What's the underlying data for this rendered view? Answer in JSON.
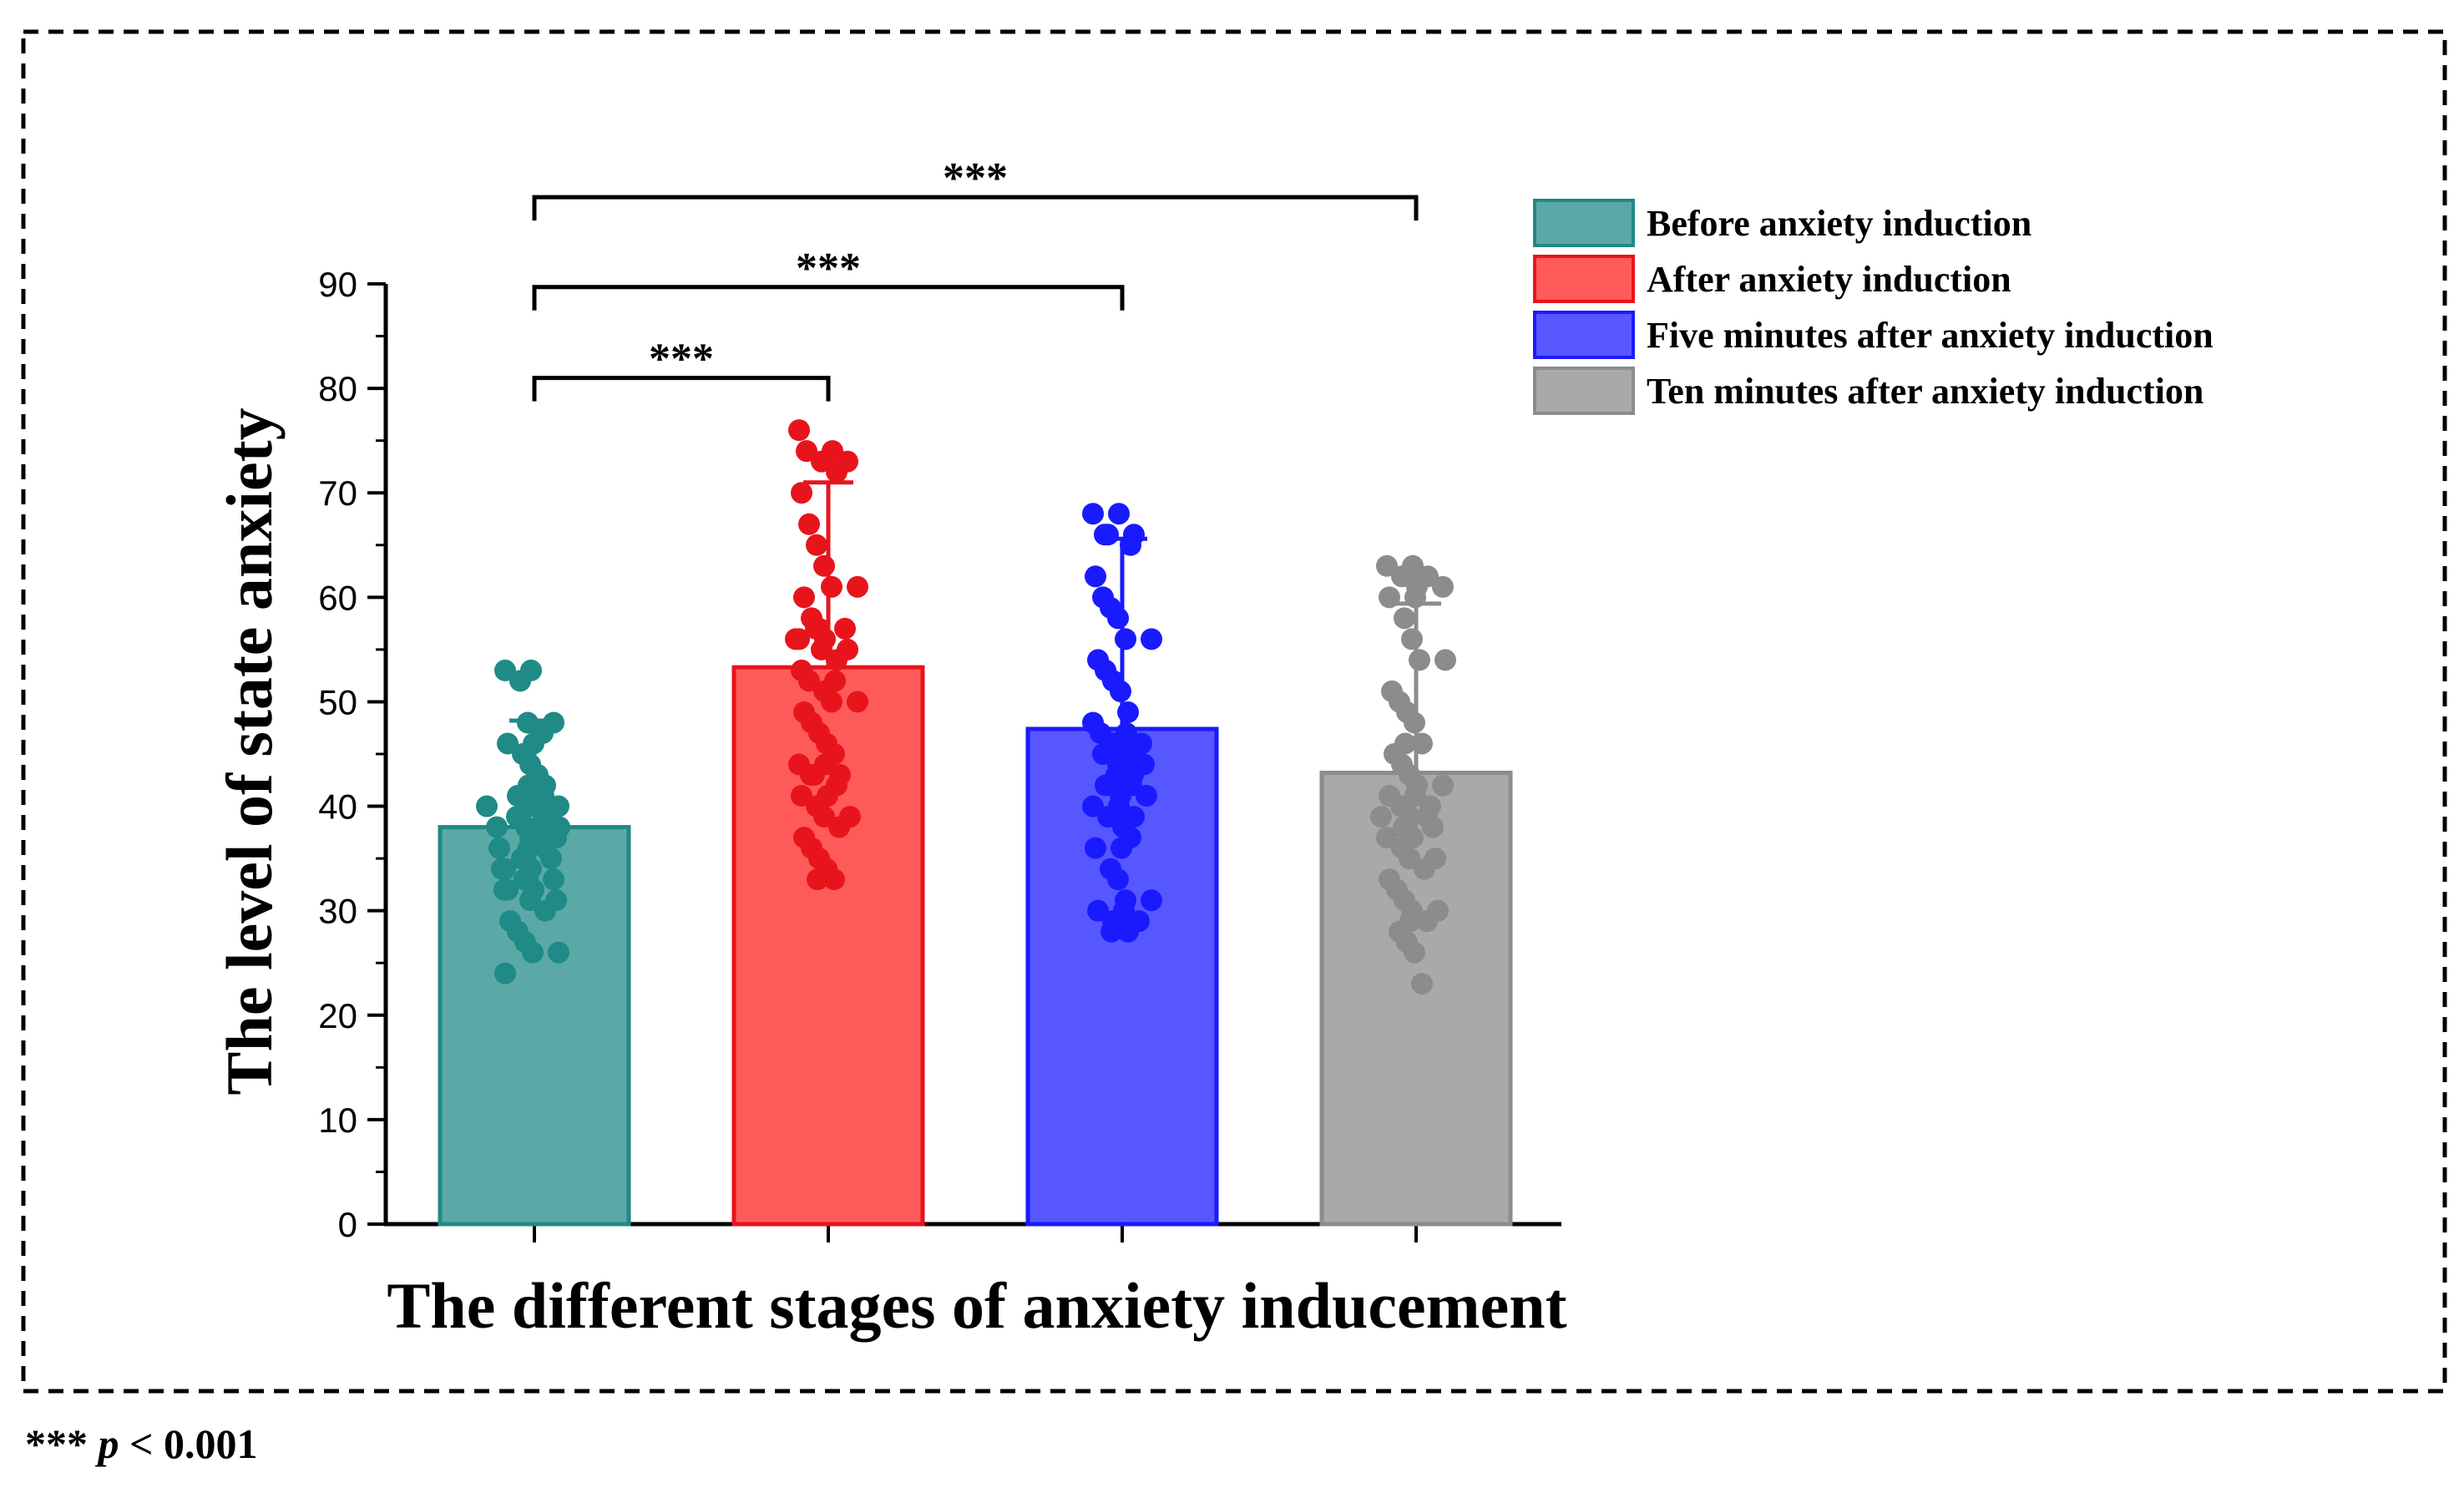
{
  "chart_data": {
    "type": "bar",
    "xlabel": "The different stages of anxiety inducement",
    "ylabel": "The level of state anxiety",
    "ylim": [
      0,
      90
    ],
    "yticks": [
      0,
      10,
      20,
      30,
      40,
      50,
      60,
      70,
      80,
      90
    ],
    "legend_position": "top-right",
    "categories": [
      "Before anxiety induction",
      "After anxiety induction",
      "Five minutes after anxiety induction",
      "Ten minutes after anxiety induction"
    ],
    "series": [
      {
        "name": "Before anxiety induction",
        "color": "#5aa9a6",
        "edge": "#1f8a86",
        "mean": 38,
        "sd": 10.2,
        "points": [
          53,
          53,
          52,
          48,
          48,
          47,
          46,
          46,
          45,
          44,
          43,
          42,
          42,
          41,
          41,
          40,
          40,
          40,
          40,
          39,
          39,
          39,
          38,
          38,
          38,
          38,
          37,
          37,
          36,
          36,
          36,
          35,
          35,
          35,
          34,
          34,
          34,
          33,
          33,
          33,
          32,
          32,
          32,
          31,
          31,
          30,
          29,
          28,
          27,
          26,
          26,
          24
        ]
      },
      {
        "name": "After anxiety induction",
        "color": "#ff5a5a",
        "edge": "#e8141c",
        "mean": 53.3,
        "sd": 17.7,
        "points": [
          76,
          74,
          74,
          73,
          73,
          72,
          70,
          67,
          65,
          63,
          61,
          61,
          60,
          58,
          57,
          57,
          57,
          56,
          56,
          56,
          55,
          55,
          54,
          53,
          52,
          52,
          51,
          50,
          50,
          49,
          48,
          47,
          46,
          45,
          44,
          44,
          43,
          43,
          43,
          42,
          41,
          41,
          40,
          39,
          39,
          38,
          37,
          36,
          35,
          34,
          33,
          33
        ]
      },
      {
        "name": "Five minutes after anxiety induction",
        "color": "#5757ff",
        "edge": "#1a1aff",
        "mean": 47.4,
        "sd": 18.2,
        "points": [
          68,
          68,
          66,
          66,
          66,
          65,
          62,
          60,
          59,
          58,
          56,
          56,
          54,
          53,
          52,
          51,
          49,
          48,
          47,
          47,
          46,
          46,
          46,
          46,
          45,
          45,
          44,
          44,
          43,
          43,
          42,
          42,
          41,
          41,
          40,
          40,
          39,
          39,
          38,
          37,
          36,
          36,
          34,
          33,
          31,
          31,
          30,
          30,
          29,
          29,
          28,
          28
        ]
      },
      {
        "name": "Ten minutes after anxiety induction",
        "color": "#a9a9a9",
        "edge": "#8c8c8c",
        "mean": 43.2,
        "sd": 16.2,
        "points": [
          63,
          63,
          62,
          62,
          61,
          61,
          60,
          60,
          58,
          56,
          54,
          54,
          51,
          50,
          49,
          48,
          46,
          46,
          45,
          44,
          43,
          42,
          42,
          41,
          41,
          40,
          40,
          40,
          39,
          39,
          39,
          38,
          38,
          38,
          37,
          37,
          36,
          35,
          35,
          34,
          33,
          32,
          31,
          30,
          30,
          29,
          29,
          28,
          27,
          26,
          23
        ]
      }
    ],
    "significance": [
      {
        "from": 0,
        "to": 1,
        "label": "***"
      },
      {
        "from": 0,
        "to": 2,
        "label": "***"
      },
      {
        "from": 0,
        "to": 3,
        "label": "***"
      }
    ]
  },
  "footnote": {
    "stars": "***",
    "p": "p",
    "rest": " < 0.001"
  }
}
